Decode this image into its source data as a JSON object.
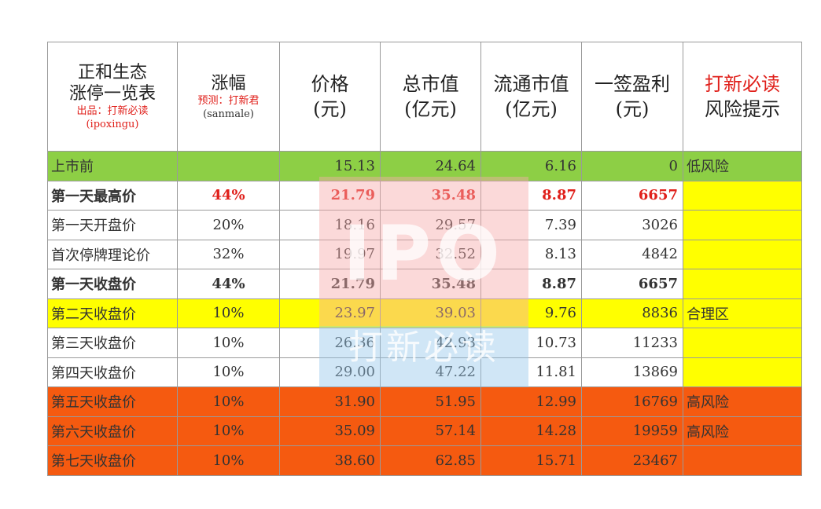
{
  "header": {
    "title_line1": "正和生态",
    "title_line2": "涨停一览表",
    "credit": "出品：打新必读",
    "credit_id": "(ipoxingu)",
    "change_label": "涨幅",
    "forecast": "预测：打新君",
    "forecast_id": "(sanmale)",
    "price_label": "价格",
    "price_unit": "(元)",
    "mcap_label": "总市值",
    "mcap_unit": "(亿元)",
    "float_label": "流通市值",
    "float_unit": "(亿元)",
    "profit_label": "一签盈利",
    "profit_unit": "(元)",
    "risk_brand": "打新必读",
    "risk_label": "风险提示"
  },
  "rows": [
    {
      "label": "上市前",
      "change": "",
      "price": "15.13",
      "mcap": "24.64",
      "float": "6.16",
      "profit": "0",
      "risk": "低风险"
    },
    {
      "label": "第一天最高价",
      "change": "44%",
      "price": "21.79",
      "mcap": "35.48",
      "float": "8.87",
      "profit": "6657",
      "risk": ""
    },
    {
      "label": "第一天开盘价",
      "change": "20%",
      "price": "18.16",
      "mcap": "29.57",
      "float": "7.39",
      "profit": "3026",
      "risk": ""
    },
    {
      "label": "首次停牌理论价",
      "change": "32%",
      "price": "19.97",
      "mcap": "32.52",
      "float": "8.13",
      "profit": "4842",
      "risk": ""
    },
    {
      "label": "第一天收盘价",
      "change": "44%",
      "price": "21.79",
      "mcap": "35.48",
      "float": "8.87",
      "profit": "6657",
      "risk": ""
    },
    {
      "label": "第二天收盘价",
      "change": "10%",
      "price": "23.97",
      "mcap": "39.03",
      "float": "9.76",
      "profit": "8836",
      "risk": "合理区"
    },
    {
      "label": "第三天收盘价",
      "change": "10%",
      "price": "26.36",
      "mcap": "42.93",
      "float": "10.73",
      "profit": "11233",
      "risk": ""
    },
    {
      "label": "第四天收盘价",
      "change": "10%",
      "price": "29.00",
      "mcap": "47.22",
      "float": "11.81",
      "profit": "13869",
      "risk": ""
    },
    {
      "label": "第五天收盘价",
      "change": "10%",
      "price": "31.90",
      "mcap": "51.95",
      "float": "12.99",
      "profit": "16769",
      "risk": "高风险"
    },
    {
      "label": "第六天收盘价",
      "change": "10%",
      "price": "35.09",
      "mcap": "57.14",
      "float": "14.28",
      "profit": "19959",
      "risk": "高风险"
    },
    {
      "label": "第七天收盘价",
      "change": "10%",
      "price": "38.60",
      "mcap": "62.85",
      "float": "15.71",
      "profit": "23467",
      "risk": ""
    }
  ],
  "watermark": {
    "logo_text": "IPO",
    "brand_text": "打新必读"
  },
  "colors": {
    "green": "#8dcf45",
    "yellow": "#ffff00",
    "orange": "#f55a10",
    "white": "#ffffff",
    "red_text": "#e0201b"
  }
}
